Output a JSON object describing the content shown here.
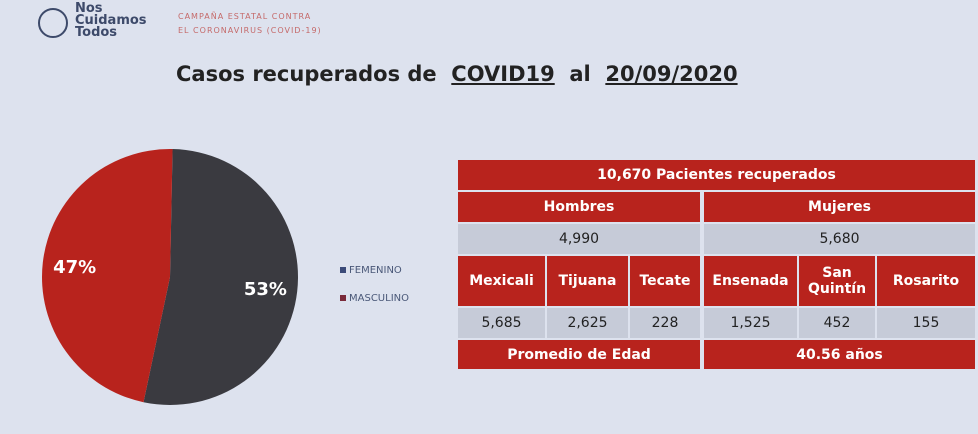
{
  "header": {
    "logo_lines": [
      "Nos",
      "Cuidamos",
      "Todos"
    ],
    "campaign_lines": [
      "CAMPAÑA ESTATAL CONTRA",
      "EL CORONAVIRUS (COVID-19)"
    ]
  },
  "title": {
    "prefix": "Casos recuperados de",
    "topic": "COVID19",
    "mid": "al",
    "date": "20/09/2020"
  },
  "chart_data": {
    "type": "pie",
    "slices": [
      {
        "name": "FEMENINO",
        "value": 53,
        "label": "53%",
        "color": "#3a3a40"
      },
      {
        "name": "MASCULINO",
        "value": 47,
        "label": "47%",
        "color": "#b8231d"
      }
    ],
    "legend_position": "right"
  },
  "table": {
    "total": "10,670 Pacientes recuperados",
    "hombres_label": "Hombres",
    "mujeres_label": "Mujeres",
    "hombres_value": "4,990",
    "mujeres_value": "5,680",
    "cities": [
      {
        "name": "Mexicali",
        "value": "5,685"
      },
      {
        "name": "Tijuana",
        "value": "2,625"
      },
      {
        "name": "Tecate",
        "value": "228"
      },
      {
        "name": "Ensenada",
        "value": "1,525"
      },
      {
        "name": "San Quintín",
        "value": "452"
      },
      {
        "name": "Rosarito",
        "value": "155"
      }
    ],
    "age_label": "Promedio de Edad",
    "age_value": "40.56 años"
  },
  "colors": {
    "red": "#b8231d",
    "dark": "#3a3a40",
    "cell": "#c6cbd8"
  }
}
